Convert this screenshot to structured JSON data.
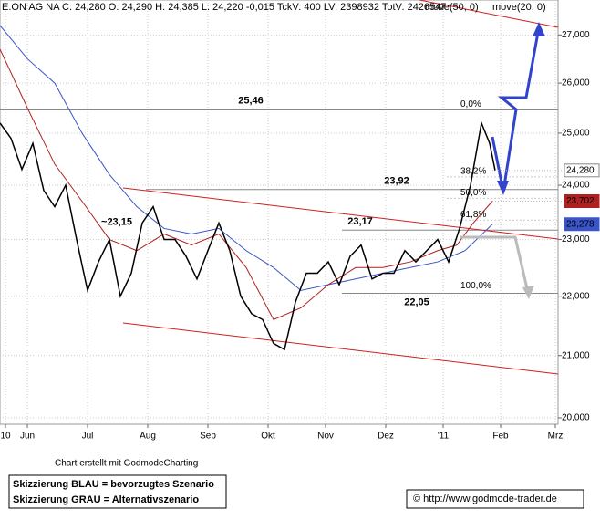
{
  "chart_data": {
    "type": "line",
    "header": "E.ON AG NA C: 24,280 O: 24,290 H: 24,385 L: 24,220 -0,015 TckV: 400 LV: 2398932 TotV: 2426547",
    "log_scale": true,
    "xlim": [
      0,
      204
    ],
    "ylim": [
      19.9,
      27.75
    ],
    "xticks": [
      {
        "value": 2,
        "label": "10"
      },
      {
        "value": 10,
        "label": "Jun"
      },
      {
        "value": 32,
        "label": "Jul"
      },
      {
        "value": 54,
        "label": "Aug"
      },
      {
        "value": 76,
        "label": "Sep"
      },
      {
        "value": 98,
        "label": "Okt"
      },
      {
        "value": 119,
        "label": "Nov"
      },
      {
        "value": 141,
        "label": "Dez"
      },
      {
        "value": 162,
        "label": "'11"
      },
      {
        "value": 183,
        "label": "Feb"
      },
      {
        "value": 203,
        "label": "Mrz"
      }
    ],
    "yticks": [
      {
        "value": 20,
        "label": "20,000"
      },
      {
        "value": 21,
        "label": "21,000"
      },
      {
        "value": 22,
        "label": "22,000"
      },
      {
        "value": 23,
        "label": "23,000"
      },
      {
        "value": 24,
        "label": "24,000"
      },
      {
        "value": 25,
        "label": "25,000"
      },
      {
        "value": 26,
        "label": "26,000"
      },
      {
        "value": 27,
        "label": "27,000"
      }
    ],
    "grid": true,
    "series": [
      {
        "name": "E.ON AG NA",
        "color": "#000000",
        "x": [
          0,
          4,
          8,
          12,
          16,
          20,
          24,
          28,
          32,
          36,
          40,
          44,
          48,
          52,
          56,
          60,
          64,
          68,
          72,
          76,
          80,
          84,
          88,
          92,
          96,
          100,
          104,
          108,
          112,
          116,
          120,
          124,
          128,
          132,
          136,
          140,
          144,
          148,
          152,
          156,
          160,
          164,
          168,
          172,
          176,
          179,
          181
        ],
        "values": [
          25.2,
          24.9,
          24.3,
          24.8,
          23.9,
          23.6,
          24.0,
          23.0,
          22.1,
          22.6,
          23.0,
          22.0,
          22.4,
          23.3,
          23.6,
          23.0,
          23.0,
          22.7,
          22.3,
          22.8,
          23.3,
          22.8,
          22.0,
          21.7,
          21.6,
          21.2,
          21.1,
          21.9,
          22.4,
          22.4,
          22.6,
          22.2,
          22.7,
          22.9,
          22.3,
          22.4,
          22.4,
          22.8,
          22.6,
          22.8,
          23.0,
          22.6,
          23.2,
          24.0,
          25.2,
          24.8,
          24.28
        ]
      },
      {
        "name": "move(50, 0)",
        "color": "#3a55c8",
        "x": [
          0,
          10,
          20,
          30,
          40,
          50,
          60,
          70,
          80,
          90,
          100,
          110,
          120,
          130,
          140,
          150,
          160,
          170,
          180
        ],
        "values": [
          27.2,
          26.5,
          26.0,
          25.0,
          24.2,
          23.6,
          23.2,
          23.1,
          23.2,
          22.8,
          22.5,
          22.1,
          22.2,
          22.3,
          22.4,
          22.5,
          22.6,
          22.8,
          23.278
        ]
      },
      {
        "name": "move(20, 0)",
        "color": "#b02020",
        "x": [
          0,
          10,
          20,
          30,
          40,
          50,
          60,
          70,
          80,
          90,
          100,
          110,
          120,
          130,
          140,
          150,
          160,
          167,
          173,
          180
        ],
        "values": [
          26.7,
          25.5,
          24.4,
          23.7,
          23.0,
          22.8,
          23.1,
          22.9,
          23.1,
          22.5,
          21.6,
          21.8,
          22.2,
          22.5,
          22.5,
          22.6,
          22.8,
          22.9,
          23.3,
          23.702
        ]
      }
    ],
    "last_values": [
      {
        "value": 24.28,
        "label": "24,280"
      },
      {
        "value": 23.702,
        "label": "23,702"
      },
      {
        "value": 23.278,
        "label": "23,278"
      }
    ],
    "levels": [
      {
        "value": 25.46,
        "label": "25,46"
      },
      {
        "value": 23.92,
        "label": "23,92"
      },
      {
        "value": 23.17,
        "label": "23,17"
      },
      {
        "value": 22.05,
        "label": "22,05"
      },
      {
        "value": 23.15,
        "label": "~23,15"
      }
    ],
    "fibonacci": [
      {
        "value": 0,
        "label": "0,0%"
      },
      {
        "value": 38.2,
        "label": "38,2%"
      },
      {
        "value": 50,
        "label": "50,0%"
      },
      {
        "value": 61.8,
        "label": "61,8%"
      },
      {
        "value": 100,
        "label": "100,0%"
      }
    ],
    "credit": "Chart erstellt mit GodmodeCharting",
    "notes": [
      "Skizzierung BLAU = bevorzugtes Szenario",
      "Skizzierung GRAU = Alternativszenario"
    ],
    "copyright": "© http://www.godmode-trader.de"
  }
}
